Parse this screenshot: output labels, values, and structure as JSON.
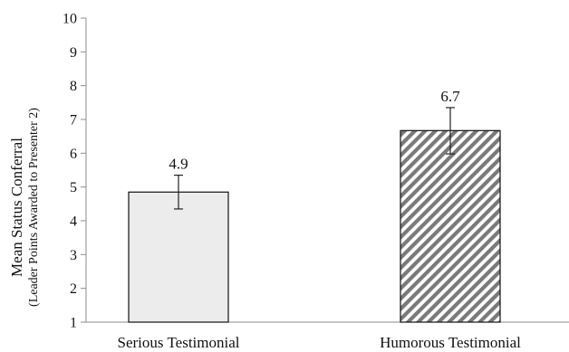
{
  "chart_data": {
    "type": "bar",
    "title": "",
    "xlabel": "",
    "ylabel": "Mean Status Conferral",
    "ylabel_sub": "(Leader Points Awarded to Presenter 2)",
    "ylim": [
      1,
      10
    ],
    "yticks": [
      1,
      2,
      3,
      4,
      5,
      6,
      7,
      8,
      9,
      10
    ],
    "categories": [
      "Serious Testimonial",
      "Humorous Testimonial"
    ],
    "values": [
      4.85,
      6.67
    ],
    "data_labels": [
      "4.9",
      "6.7"
    ],
    "error_bars": [
      {
        "low": 4.35,
        "high": 5.35
      },
      {
        "low": 5.98,
        "high": 7.35
      }
    ],
    "bar_styles": [
      "solid-light-gray",
      "diagonal-hatch"
    ],
    "grid": false,
    "legend": "none"
  },
  "colors": {
    "axis": "#8c8c8c",
    "bar_edge": "#111111",
    "bar1_fill": "#ececec",
    "hatch_dark": "#7a7a7a",
    "hatch_light": "#ffffff",
    "error_bar": "#222222"
  }
}
